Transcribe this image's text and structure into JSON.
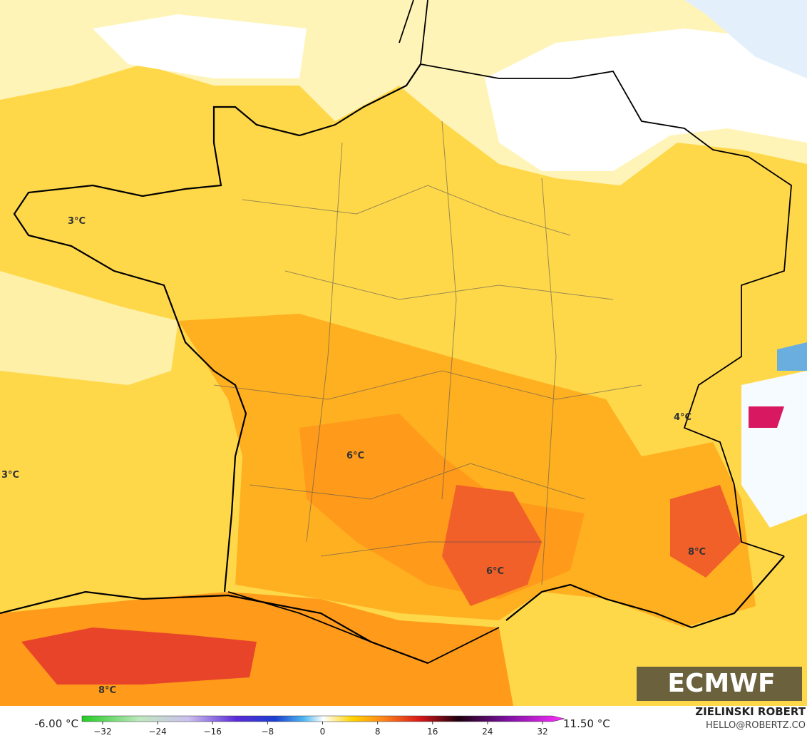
{
  "map": {
    "labels": [
      "3°C",
      "3°C",
      "6°C",
      "4°C",
      "8°C",
      "6°C",
      "8°C"
    ]
  },
  "logo": "ECMWF",
  "colorbar": {
    "min_label": "-6.00 °C",
    "max_label": "11.50 °C",
    "lim": [
      -35,
      35
    ],
    "ticks": [
      {
        "value": -32,
        "label": "−32"
      },
      {
        "value": -24,
        "label": "−24"
      },
      {
        "value": -16,
        "label": "−16"
      },
      {
        "value": -8,
        "label": "−8"
      },
      0,
      8,
      16,
      24,
      32
    ]
  },
  "credit": {
    "name": "ZIELINSKI ROBERT",
    "contact": "HELLO@ROBERTZ.CO"
  }
}
